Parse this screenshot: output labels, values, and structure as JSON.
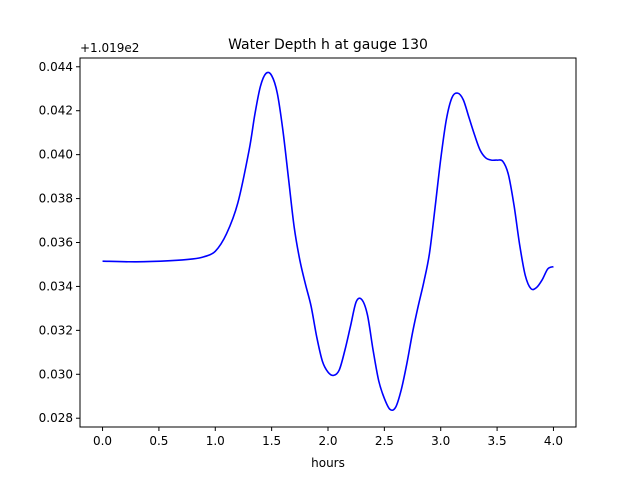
{
  "chart_data": {
    "type": "line",
    "title": "Water Depth h at gauge 130",
    "xlabel": "hours",
    "ylabel": "",
    "offset_text": "+1.019e2",
    "xlim": [
      -0.2,
      4.2
    ],
    "ylim": [
      0.0276,
      0.0444
    ],
    "x_ticks": [
      0.0,
      0.5,
      1.0,
      1.5,
      2.0,
      2.5,
      3.0,
      3.5,
      4.0
    ],
    "x_tick_labels": [
      "0.0",
      "0.5",
      "1.0",
      "1.5",
      "2.0",
      "2.5",
      "3.0",
      "3.5",
      "4.0"
    ],
    "y_ticks": [
      0.028,
      0.03,
      0.032,
      0.034,
      0.036,
      0.038,
      0.04,
      0.042,
      0.044
    ],
    "y_tick_labels": [
      "0.028",
      "0.030",
      "0.032",
      "0.034",
      "0.036",
      "0.038",
      "0.040",
      "0.042",
      "0.044"
    ],
    "grid": false,
    "series": [
      {
        "color": "#0000ff",
        "x": [
          0.0,
          0.3,
          0.6,
          0.8,
          0.9,
          1.0,
          1.1,
          1.2,
          1.3,
          1.35,
          1.4,
          1.45,
          1.5,
          1.55,
          1.6,
          1.65,
          1.7,
          1.75,
          1.8,
          1.85,
          1.9,
          1.95,
          2.0,
          2.05,
          2.1,
          2.15,
          2.2,
          2.25,
          2.3,
          2.35,
          2.4,
          2.45,
          2.5,
          2.55,
          2.6,
          2.65,
          2.7,
          2.75,
          2.8,
          2.85,
          2.9,
          2.95,
          3.0,
          3.05,
          3.1,
          3.15,
          3.2,
          3.25,
          3.3,
          3.35,
          3.4,
          3.45,
          3.5,
          3.55,
          3.6,
          3.65,
          3.7,
          3.75,
          3.8,
          3.85,
          3.9,
          3.95,
          4.0
        ],
        "y": [
          0.03515,
          0.03512,
          0.03517,
          0.03525,
          0.03535,
          0.0356,
          0.0364,
          0.0378,
          0.0402,
          0.0418,
          0.0431,
          0.0437,
          0.0436,
          0.0428,
          0.0411,
          0.0389,
          0.0367,
          0.0352,
          0.0341,
          0.0331,
          0.0317,
          0.0306,
          0.0301,
          0.02995,
          0.0302,
          0.0311,
          0.0322,
          0.0333,
          0.0334,
          0.0327,
          0.0311,
          0.0297,
          0.0289,
          0.0284,
          0.0285,
          0.0293,
          0.0305,
          0.0319,
          0.0331,
          0.0342,
          0.0355,
          0.0376,
          0.0398,
          0.0416,
          0.0426,
          0.0428,
          0.0425,
          0.0417,
          0.0409,
          0.0402,
          0.03985,
          0.03975,
          0.03975,
          0.0397,
          0.0391,
          0.0377,
          0.0359,
          0.0345,
          0.0339,
          0.03395,
          0.0343,
          0.0348,
          0.0349
        ]
      }
    ]
  }
}
